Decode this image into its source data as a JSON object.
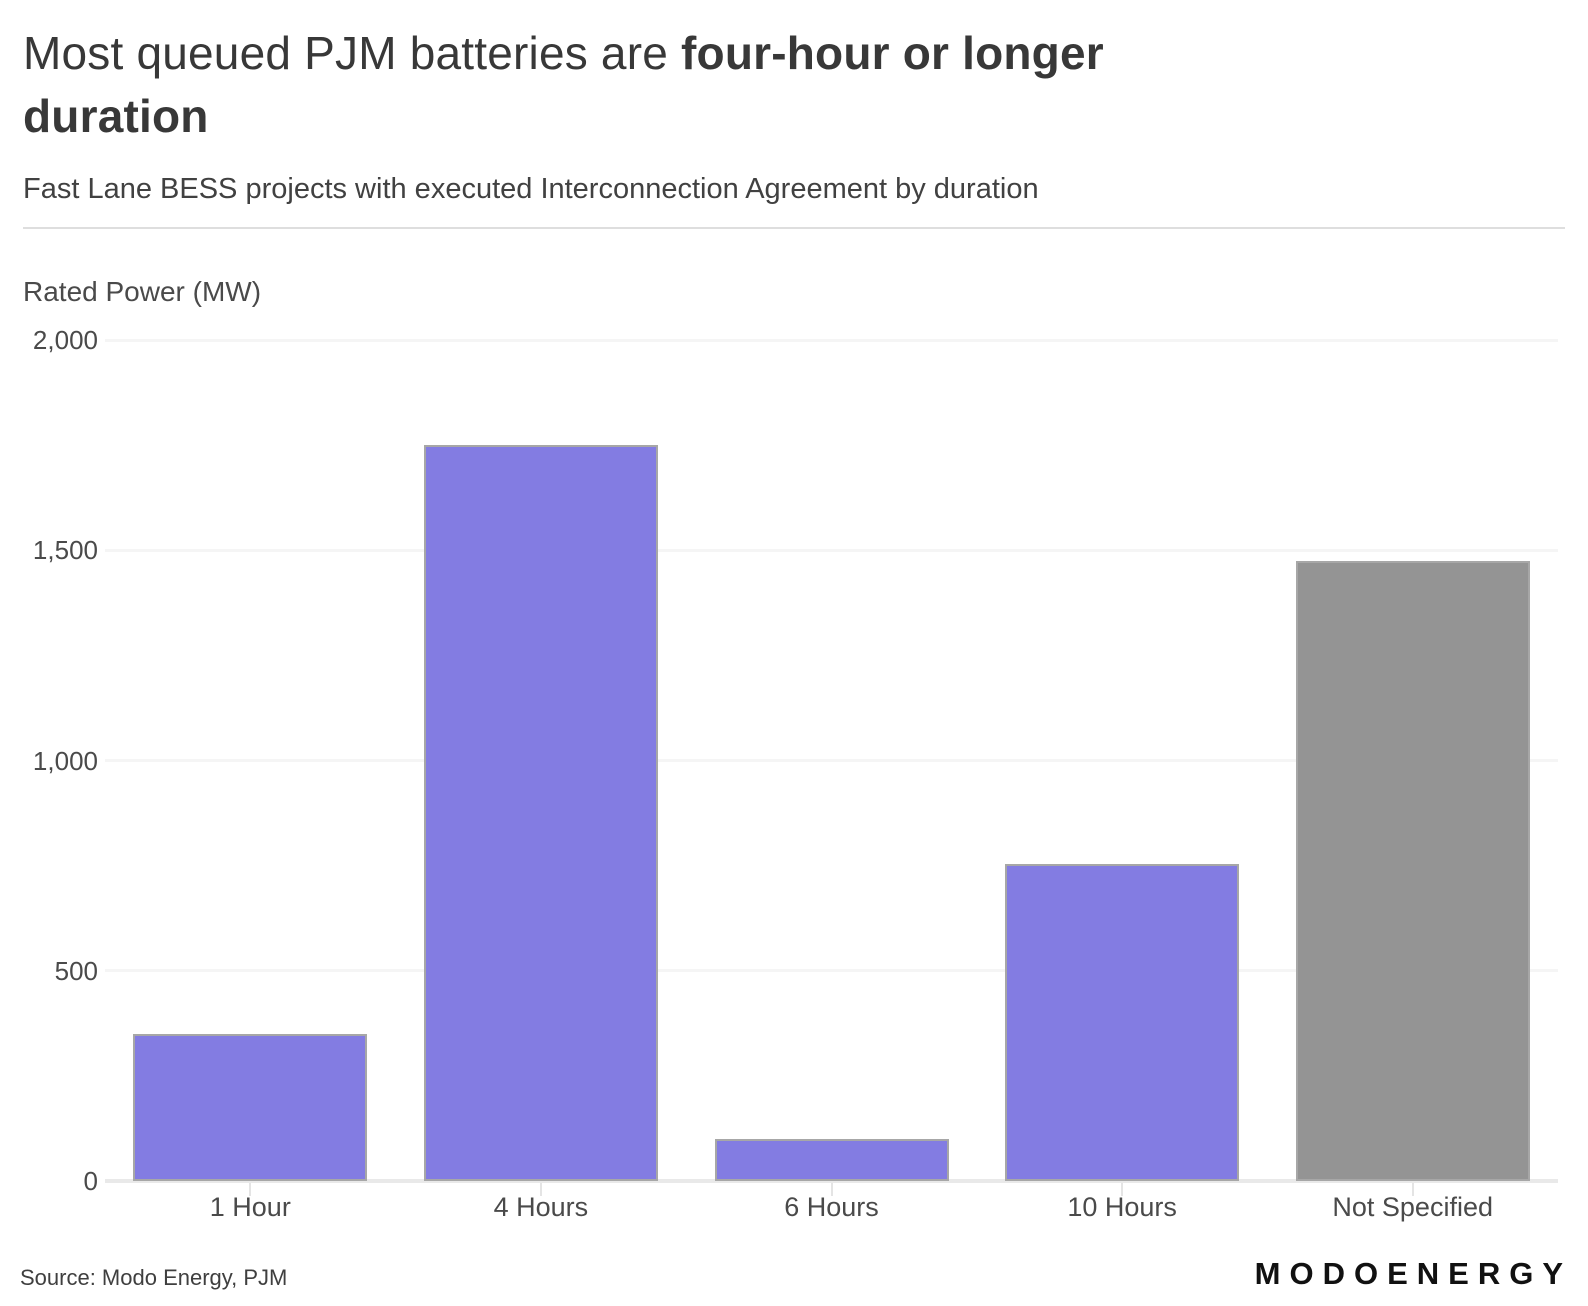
{
  "header": {
    "title_regular": "Most queued PJM batteries are ",
    "title_bold": "four-hour or longer",
    "title_bold_line2": "duration",
    "subtitle": "Fast Lane BESS projects with executed Interconnection Agreement by duration"
  },
  "chart_data": {
    "type": "bar",
    "title": "Most queued PJM batteries are four-hour or longer duration",
    "subtitle": "Fast Lane BESS projects with executed Interconnection Agreement by duration",
    "categories": [
      "1 Hour",
      "4 Hours",
      "6 Hours",
      "10 Hours",
      "Not Specified"
    ],
    "values": [
      350,
      1750,
      100,
      755,
      1475
    ],
    "unit": "MW",
    "xlabel": "",
    "ylabel": "Rated Power (MW)",
    "ylim": [
      0,
      2000
    ],
    "yticks": [
      0,
      500,
      1000,
      1500,
      2000
    ],
    "ytick_labels": [
      "0",
      "500",
      "1,000",
      "1,500",
      "2,000"
    ],
    "grid": true,
    "legend": false,
    "bar_colors": [
      "#837CE2",
      "#837CE2",
      "#837CE2",
      "#837CE2",
      "#949494"
    ]
  },
  "colors": {
    "accent_purple": "#837CE2",
    "neutral_gray": "#949494",
    "bar_border": "#A7A7A7",
    "gridline": "#F5F5F5",
    "axis_line": "#E9E9E9",
    "tick": "#E4E4E4",
    "title_text": "#383838",
    "axis_text": "#4A4A4A"
  },
  "footer": {
    "source": "Source: Modo Energy, PJM",
    "logo": "MODOENERGY"
  }
}
